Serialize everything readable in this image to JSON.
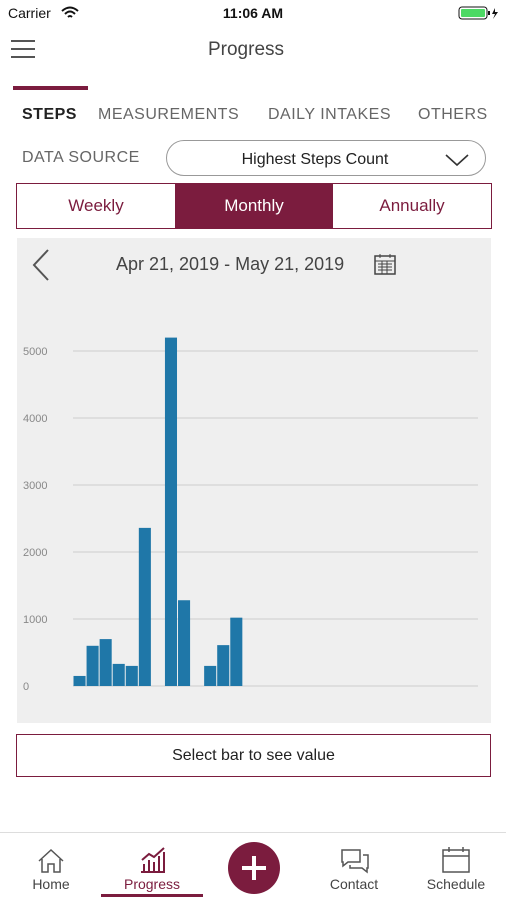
{
  "status": {
    "carrier": "Carrier",
    "time": "11:06 AM"
  },
  "header": {
    "title": "Progress"
  },
  "tabs": [
    "STEPS",
    "MEASUREMENTS",
    "DAILY INTAKES",
    "OTHERS"
  ],
  "data_source": {
    "label": "DATA SOURCE",
    "value": "Highest Steps Count"
  },
  "periods": [
    "Weekly",
    "Monthly",
    "Annually"
  ],
  "date_range": "Apr 21, 2019 - May 21, 2019",
  "chart_data": {
    "type": "bar",
    "color": "#1f77a8",
    "grid": true,
    "categories": [
      null,
      null,
      null,
      null,
      null,
      null,
      null,
      null,
      null,
      null,
      null,
      null,
      null,
      null,
      null,
      null,
      null,
      null,
      null,
      null,
      null,
      null,
      null,
      null,
      null,
      null,
      null,
      null,
      null,
      null,
      null
    ],
    "values": [
      150,
      600,
      700,
      330,
      300,
      2360,
      0,
      5200,
      1280,
      0,
      300,
      610,
      1020,
      0,
      0,
      0,
      0,
      0,
      0,
      0,
      0,
      0,
      0,
      0,
      0,
      0,
      0,
      0,
      0,
      0,
      0
    ],
    "ylim": [
      0,
      5000
    ],
    "yticks": [
      0,
      1000,
      2000,
      3000,
      4000,
      5000
    ]
  },
  "hint": "Select bar to see value",
  "nav": [
    "Home",
    "Progress",
    "Contact",
    "Schedule"
  ]
}
